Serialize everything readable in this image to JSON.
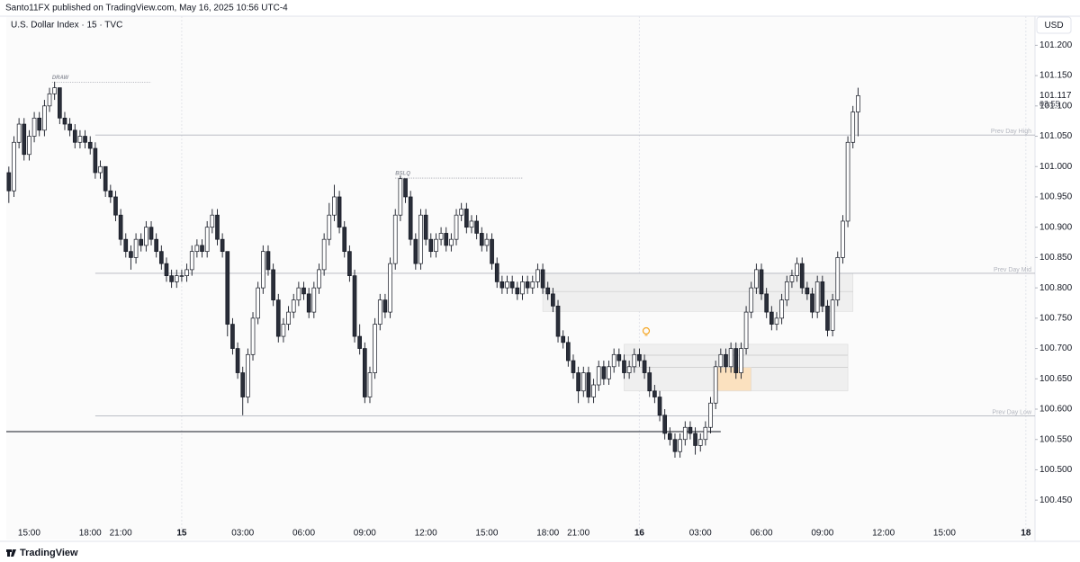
{
  "header": "Santo11FX published on TradingView.com, May 16, 2025 10:56 UTC-4",
  "brand": "TradingView",
  "chart_data": {
    "type": "candlestick",
    "title": "U.S. Dollar Index · 15 · TVC",
    "currency": "USD",
    "countdown": "03:55",
    "up_color": "#ffffff",
    "down_color": "#2a2e39",
    "border_color": "#131722",
    "xlim": [
      -0.5,
      201.8
    ],
    "xticks": [
      {
        "value": 4,
        "label": "15:00"
      },
      {
        "value": 16,
        "label": "18:00"
      },
      {
        "value": 22,
        "label": "21:00"
      },
      {
        "value": 34,
        "label": "15"
      },
      {
        "value": 46,
        "label": "03:00"
      },
      {
        "value": 58,
        "label": "06:00"
      },
      {
        "value": 70,
        "label": "09:00"
      },
      {
        "value": 82,
        "label": "12:00"
      },
      {
        "value": 94,
        "label": "15:00"
      },
      {
        "value": 106,
        "label": "18:00"
      },
      {
        "value": 112,
        "label": "21:00"
      },
      {
        "value": 124,
        "label": "16"
      },
      {
        "value": 136,
        "label": "03:00"
      },
      {
        "value": 148,
        "label": "06:00"
      },
      {
        "value": 160,
        "label": "09:00"
      },
      {
        "value": 172,
        "label": "12:00"
      },
      {
        "value": 184,
        "label": "15:00"
      },
      {
        "value": 200,
        "label": "18"
      }
    ],
    "ylim": [
      100.385,
      101.248
    ],
    "yticks": [
      {
        "value": 100.45,
        "label": "100.450"
      },
      {
        "value": 100.5,
        "label": "100.500"
      },
      {
        "value": 100.55,
        "label": "100.550"
      },
      {
        "value": 100.6,
        "label": "100.600"
      },
      {
        "value": 100.65,
        "label": "100.650"
      },
      {
        "value": 100.7,
        "label": "100.700"
      },
      {
        "value": 100.75,
        "label": "100.750"
      },
      {
        "value": 100.8,
        "label": "100.800"
      },
      {
        "value": 100.85,
        "label": "100.850"
      },
      {
        "value": 100.9,
        "label": "100.900"
      },
      {
        "value": 100.95,
        "label": "100.950"
      },
      {
        "value": 101,
        "label": "101.000"
      },
      {
        "value": 101.05,
        "label": "101.050"
      },
      {
        "value": 101.1,
        "label": "101.100"
      },
      {
        "value": 101.15,
        "label": "101.150"
      },
      {
        "value": 101.2,
        "label": "101.200"
      }
    ],
    "levels": [
      {
        "label": "Prev Day High",
        "value": 101.052,
        "from": 17,
        "color": "#b2b5be"
      },
      {
        "label": "Prev Day Mid",
        "value": 100.824,
        "from": 17,
        "color": "#b2b5be"
      },
      {
        "label": "Prev Day Low",
        "value": 100.589,
        "from": 17,
        "color": "#b2b5be"
      }
    ],
    "rays": [
      {
        "value": 100.563,
        "from": -0.5,
        "to": 140,
        "color": "#131722"
      }
    ],
    "annotations": [
      {
        "label": "DRAW",
        "value": 101.139,
        "from": 8.5,
        "to": 28
      },
      {
        "label": "BSLQ",
        "value": 100.981,
        "from": 76,
        "to": 101
      }
    ],
    "zones": [
      {
        "from": 105,
        "to": 166,
        "top": 100.824,
        "bottom": 100.761,
        "lines": [
          100.794
        ],
        "color": "#efefef"
      },
      {
        "from": 121,
        "to": 165,
        "top": 100.707,
        "bottom": 100.63,
        "lines": [
          100.689,
          100.669
        ],
        "color": "#efefef"
      },
      {
        "from": 139,
        "to": 146,
        "top": 100.669,
        "bottom": 100.63,
        "lines": [],
        "color": "#fbe1bf"
      }
    ],
    "ohlc": [
      [
        100.99,
        101.0,
        100.94,
        100.96
      ],
      [
        100.96,
        101.05,
        100.95,
        101.04
      ],
      [
        101.04,
        101.08,
        101.03,
        101.07
      ],
      [
        101.07,
        101.08,
        101.01,
        101.02
      ],
      [
        101.02,
        101.06,
        101.01,
        101.05
      ],
      [
        101.05,
        101.09,
        101.04,
        101.08
      ],
      [
        101.08,
        101.09,
        101.05,
        101.06
      ],
      [
        101.06,
        101.11,
        101.05,
        101.1
      ],
      [
        101.1,
        101.13,
        101.09,
        101.12
      ],
      [
        101.12,
        101.14,
        101.11,
        101.13
      ],
      [
        101.13,
        101.13,
        101.07,
        101.08
      ],
      [
        101.08,
        101.09,
        101.06,
        101.07
      ],
      [
        101.07,
        101.08,
        101.05,
        101.06
      ],
      [
        101.06,
        101.07,
        101.03,
        101.04
      ],
      [
        101.04,
        101.06,
        101.03,
        101.05
      ],
      [
        101.05,
        101.06,
        101.03,
        101.04
      ],
      [
        101.04,
        101.05,
        101.02,
        101.03
      ],
      [
        101.03,
        101.04,
        100.98,
        100.99
      ],
      [
        100.99,
        101.01,
        100.98,
        101.0
      ],
      [
        101.0,
        101.0,
        100.95,
        100.96
      ],
      [
        100.96,
        100.97,
        100.94,
        100.95
      ],
      [
        100.95,
        100.96,
        100.91,
        100.92
      ],
      [
        100.92,
        100.93,
        100.87,
        100.88
      ],
      [
        100.88,
        100.89,
        100.85,
        100.86
      ],
      [
        100.86,
        100.87,
        100.83,
        100.85
      ],
      [
        100.85,
        100.89,
        100.84,
        100.88
      ],
      [
        100.88,
        100.89,
        100.86,
        100.87
      ],
      [
        100.87,
        100.91,
        100.86,
        100.9
      ],
      [
        100.9,
        100.91,
        100.87,
        100.88
      ],
      [
        100.88,
        100.89,
        100.85,
        100.86
      ],
      [
        100.86,
        100.87,
        100.83,
        100.84
      ],
      [
        100.84,
        100.85,
        100.81,
        100.82
      ],
      [
        100.82,
        100.83,
        100.8,
        100.81
      ],
      [
        100.81,
        100.83,
        100.8,
        100.82
      ],
      [
        100.82,
        100.83,
        100.81,
        100.82
      ],
      [
        100.82,
        100.84,
        100.81,
        100.83
      ],
      [
        100.83,
        100.87,
        100.82,
        100.86
      ],
      [
        100.86,
        100.88,
        100.85,
        100.87
      ],
      [
        100.87,
        100.88,
        100.85,
        100.86
      ],
      [
        100.86,
        100.91,
        100.85,
        100.9
      ],
      [
        100.9,
        100.93,
        100.89,
        100.92
      ],
      [
        100.92,
        100.93,
        100.87,
        100.88
      ],
      [
        100.88,
        100.89,
        100.85,
        100.86
      ],
      [
        100.86,
        100.86,
        100.72,
        100.74
      ],
      [
        100.74,
        100.75,
        100.69,
        100.7
      ],
      [
        100.7,
        100.71,
        100.65,
        100.66
      ],
      [
        100.66,
        100.67,
        100.59,
        100.62
      ],
      [
        100.62,
        100.7,
        100.61,
        100.69
      ],
      [
        100.69,
        100.76,
        100.68,
        100.75
      ],
      [
        100.75,
        100.81,
        100.74,
        100.8
      ],
      [
        100.8,
        100.87,
        100.79,
        100.86
      ],
      [
        100.86,
        100.87,
        100.82,
        100.83
      ],
      [
        100.83,
        100.84,
        100.77,
        100.78
      ],
      [
        100.78,
        100.79,
        100.71,
        100.72
      ],
      [
        100.72,
        100.75,
        100.71,
        100.74
      ],
      [
        100.74,
        100.77,
        100.73,
        100.76
      ],
      [
        100.76,
        100.79,
        100.75,
        100.78
      ],
      [
        100.78,
        100.81,
        100.77,
        100.8
      ],
      [
        100.8,
        100.81,
        100.78,
        100.79
      ],
      [
        100.79,
        100.8,
        100.75,
        100.76
      ],
      [
        100.76,
        100.81,
        100.75,
        100.8
      ],
      [
        100.8,
        100.84,
        100.79,
        100.83
      ],
      [
        100.83,
        100.89,
        100.82,
        100.88
      ],
      [
        100.88,
        100.94,
        100.87,
        100.92
      ],
      [
        100.92,
        100.97,
        100.91,
        100.95
      ],
      [
        100.95,
        100.96,
        100.89,
        100.9
      ],
      [
        100.9,
        100.91,
        100.85,
        100.86
      ],
      [
        100.86,
        100.87,
        100.81,
        100.82
      ],
      [
        100.82,
        100.83,
        100.71,
        100.72
      ],
      [
        100.72,
        100.74,
        100.69,
        100.7
      ],
      [
        100.7,
        100.71,
        100.61,
        100.62
      ],
      [
        100.62,
        100.67,
        100.61,
        100.66
      ],
      [
        100.66,
        100.75,
        100.65,
        100.74
      ],
      [
        100.74,
        100.79,
        100.73,
        100.78
      ],
      [
        100.78,
        100.79,
        100.75,
        100.76
      ],
      [
        100.76,
        100.85,
        100.75,
        100.84
      ],
      [
        100.84,
        100.93,
        100.83,
        100.92
      ],
      [
        100.92,
        100.985,
        100.91,
        100.98
      ],
      [
        100.98,
        100.98,
        100.94,
        100.95
      ],
      [
        100.95,
        100.96,
        100.87,
        100.88
      ],
      [
        100.88,
        100.89,
        100.83,
        100.84
      ],
      [
        100.84,
        100.93,
        100.83,
        100.92
      ],
      [
        100.92,
        100.93,
        100.87,
        100.88
      ],
      [
        100.88,
        100.89,
        100.85,
        100.86
      ],
      [
        100.86,
        100.89,
        100.85,
        100.88
      ],
      [
        100.88,
        100.9,
        100.87,
        100.89
      ],
      [
        100.89,
        100.9,
        100.86,
        100.87
      ],
      [
        100.87,
        100.89,
        100.86,
        100.88
      ],
      [
        100.88,
        100.93,
        100.87,
        100.92
      ],
      [
        100.92,
        100.94,
        100.91,
        100.93
      ],
      [
        100.93,
        100.94,
        100.89,
        100.9
      ],
      [
        100.9,
        100.92,
        100.89,
        100.91
      ],
      [
        100.91,
        100.92,
        100.88,
        100.89
      ],
      [
        100.89,
        100.9,
        100.86,
        100.87
      ],
      [
        100.87,
        100.89,
        100.86,
        100.88
      ],
      [
        100.88,
        100.89,
        100.83,
        100.84
      ],
      [
        100.84,
        100.85,
        100.8,
        100.81
      ],
      [
        100.81,
        100.82,
        100.79,
        100.8
      ],
      [
        100.8,
        100.82,
        100.79,
        100.81
      ],
      [
        100.81,
        100.82,
        100.79,
        100.8
      ],
      [
        100.8,
        100.81,
        100.78,
        100.79
      ],
      [
        100.79,
        100.82,
        100.78,
        100.81
      ],
      [
        100.81,
        100.82,
        100.79,
        100.8
      ],
      [
        100.8,
        100.82,
        100.79,
        100.81
      ],
      [
        100.81,
        100.84,
        100.8,
        100.83
      ],
      [
        100.83,
        100.84,
        100.79,
        100.8
      ],
      [
        100.8,
        100.81,
        100.78,
        100.79
      ],
      [
        100.79,
        100.8,
        100.76,
        100.77
      ],
      [
        100.77,
        100.78,
        100.71,
        100.72
      ],
      [
        100.72,
        100.73,
        100.7,
        100.71
      ],
      [
        100.71,
        100.72,
        100.67,
        100.68
      ],
      [
        100.68,
        100.69,
        100.65,
        100.66
      ],
      [
        100.66,
        100.67,
        100.61,
        100.63
      ],
      [
        100.63,
        100.67,
        100.62,
        100.66
      ],
      [
        100.66,
        100.67,
        100.61,
        100.62
      ],
      [
        100.62,
        100.65,
        100.61,
        100.64
      ],
      [
        100.64,
        100.68,
        100.63,
        100.67
      ],
      [
        100.67,
        100.68,
        100.64,
        100.65
      ],
      [
        100.65,
        100.68,
        100.64,
        100.67
      ],
      [
        100.67,
        100.7,
        100.66,
        100.69
      ],
      [
        100.69,
        100.7,
        100.67,
        100.68
      ],
      [
        100.68,
        100.69,
        100.65,
        100.66
      ],
      [
        100.66,
        100.68,
        100.65,
        100.67
      ],
      [
        100.67,
        100.7,
        100.66,
        100.69
      ],
      [
        100.69,
        100.7,
        100.67,
        100.68
      ],
      [
        100.68,
        100.69,
        100.65,
        100.66
      ],
      [
        100.66,
        100.67,
        100.62,
        100.63
      ],
      [
        100.63,
        100.64,
        100.61,
        100.62
      ],
      [
        100.62,
        100.63,
        100.58,
        100.59
      ],
      [
        100.59,
        100.6,
        100.55,
        100.56
      ],
      [
        100.56,
        100.57,
        100.54,
        100.55
      ],
      [
        100.55,
        100.56,
        100.52,
        100.53
      ],
      [
        100.53,
        100.56,
        100.52,
        100.55
      ],
      [
        100.55,
        100.58,
        100.54,
        100.57
      ],
      [
        100.57,
        100.58,
        100.55,
        100.56
      ],
      [
        100.56,
        100.57,
        100.525,
        100.54
      ],
      [
        100.54,
        100.56,
        100.53,
        100.55
      ],
      [
        100.55,
        100.58,
        100.54,
        100.57
      ],
      [
        100.57,
        100.62,
        100.56,
        100.61
      ],
      [
        100.61,
        100.68,
        100.6,
        100.67
      ],
      [
        100.67,
        100.7,
        100.66,
        100.69
      ],
      [
        100.69,
        100.7,
        100.66,
        100.67
      ],
      [
        100.67,
        100.71,
        100.66,
        100.7
      ],
      [
        100.7,
        100.71,
        100.65,
        100.66
      ],
      [
        100.66,
        100.71,
        100.65,
        100.7
      ],
      [
        100.7,
        100.77,
        100.69,
        100.76
      ],
      [
        100.76,
        100.81,
        100.75,
        100.8
      ],
      [
        100.8,
        100.84,
        100.79,
        100.83
      ],
      [
        100.83,
        100.84,
        100.78,
        100.79
      ],
      [
        100.79,
        100.8,
        100.75,
        100.76
      ],
      [
        100.76,
        100.77,
        100.73,
        100.74
      ],
      [
        100.74,
        100.76,
        100.73,
        100.75
      ],
      [
        100.75,
        100.79,
        100.74,
        100.78
      ],
      [
        100.78,
        100.82,
        100.77,
        100.81
      ],
      [
        100.81,
        100.83,
        100.8,
        100.82
      ],
      [
        100.82,
        100.85,
        100.81,
        100.84
      ],
      [
        100.84,
        100.85,
        100.79,
        100.8
      ],
      [
        100.8,
        100.81,
        100.78,
        100.79
      ],
      [
        100.79,
        100.8,
        100.75,
        100.76
      ],
      [
        100.76,
        100.82,
        100.75,
        100.81
      ],
      [
        100.81,
        100.82,
        100.76,
        100.77
      ],
      [
        100.77,
        100.78,
        100.72,
        100.73
      ],
      [
        100.73,
        100.79,
        100.72,
        100.78
      ],
      [
        100.78,
        100.86,
        100.77,
        100.85
      ],
      [
        100.85,
        100.92,
        100.84,
        100.91
      ],
      [
        100.91,
        101.05,
        100.9,
        101.04
      ],
      [
        101.04,
        101.1,
        101.03,
        101.09
      ],
      [
        101.09,
        101.13,
        101.05,
        101.117
      ]
    ]
  }
}
